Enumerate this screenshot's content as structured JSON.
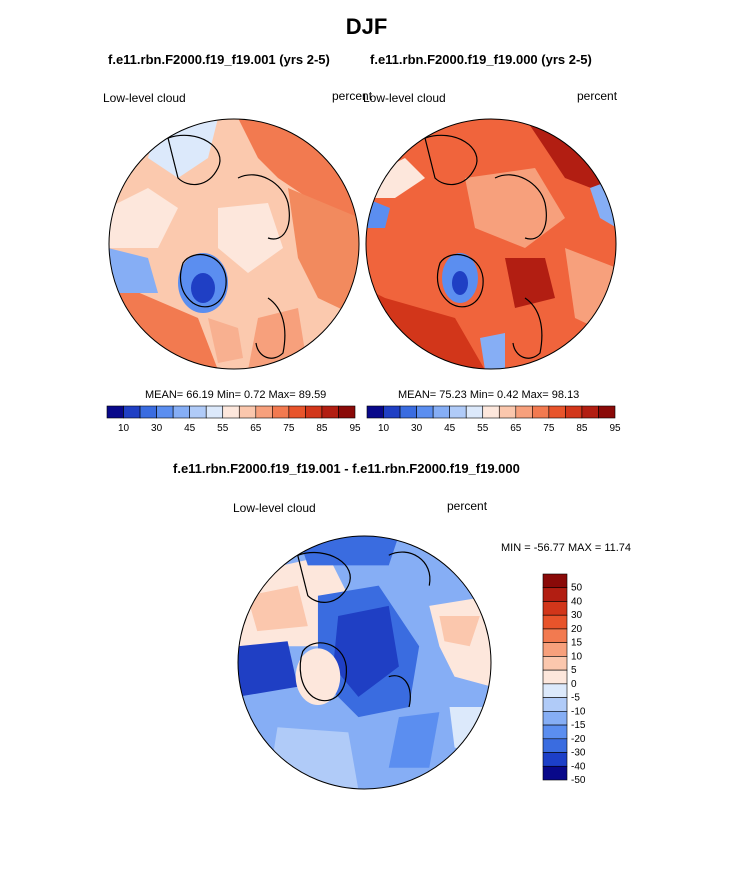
{
  "title": "DJF",
  "colors": {
    "seq": [
      "#08088a",
      "#1f3fc4",
      "#3a6ce0",
      "#5b8ef0",
      "#86aef5",
      "#b0cbf8",
      "#dce9fb",
      "#fde7dc",
      "#fbc7ad",
      "#f7a07c",
      "#f27a50",
      "#e8542b",
      "#d2361a",
      "#b21e12",
      "#8a0a08"
    ],
    "diff": [
      "#08088a",
      "#1c3fc8",
      "#3a6ce0",
      "#5b8ef0",
      "#86aef5",
      "#b0cbf8",
      "#dce9fb",
      "#fde7dc",
      "#fbc7ad",
      "#f7a07c",
      "#f27a50",
      "#e8542b",
      "#d2361a",
      "#b21e12",
      "#8a0a08"
    ]
  },
  "chart_data": [
    {
      "type": "heatmap",
      "projection": "polar",
      "subtitle": "f.e11.rbn.F2000.f19_f19.001 (yrs 2-5)",
      "left_label": "Low-level cloud",
      "right_label": "percent",
      "stats_text": "MEAN=  66.19  Min=   0.72  Max=  89.59",
      "mean": 66.19,
      "min": 0.72,
      "max": 89.59,
      "colorbar_ticks": [
        "10",
        "30",
        "45",
        "55",
        "65",
        "75",
        "85",
        "95"
      ]
    },
    {
      "type": "heatmap",
      "projection": "polar",
      "subtitle": "f.e11.rbn.F2000.f19_f19.000 (yrs 2-5)",
      "left_label": "Low-level cloud",
      "right_label": "percent",
      "stats_text": "MEAN=  75.23  Min=   0.42  Max=  98.13",
      "mean": 75.23,
      "min": 0.42,
      "max": 98.13,
      "colorbar_ticks": [
        "10",
        "30",
        "45",
        "55",
        "65",
        "75",
        "85",
        "95"
      ]
    },
    {
      "type": "heatmap",
      "projection": "polar",
      "subtitle": "f.e11.rbn.F2000.f19_f19.001 - f.e11.rbn.F2000.f19_f19.000",
      "left_label": "Low-level cloud",
      "right_label": "percent",
      "stats_text": "MIN = -56.77 MAX =  11.74",
      "min": -56.77,
      "max": 11.74,
      "colorbar_ticks": [
        "50",
        "40",
        "30",
        "20",
        "15",
        "10",
        "5",
        "0",
        "-5",
        "-10",
        "-15",
        "-20",
        "-30",
        "-40",
        "-50"
      ]
    }
  ]
}
